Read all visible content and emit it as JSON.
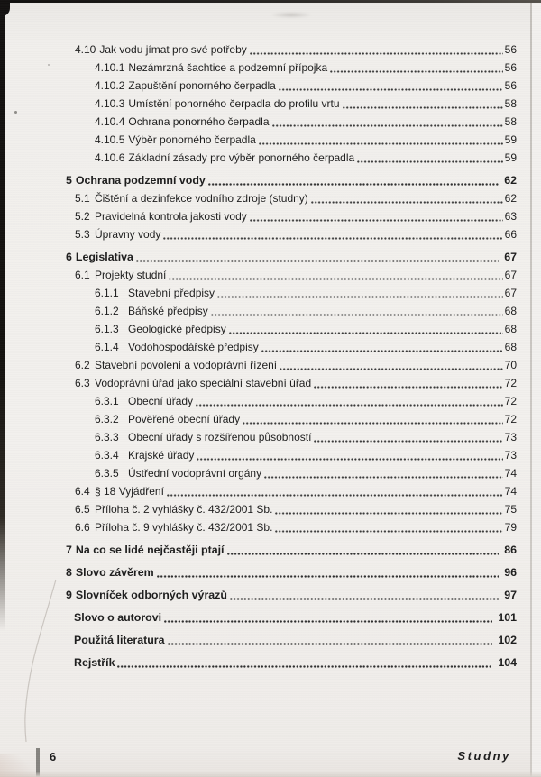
{
  "document": {
    "kind": "scanned book table of contents page",
    "language": "cs"
  },
  "colors": {
    "paper": "#f1efec",
    "ink": "#1d1d1d",
    "scan_edge_dark": "#131110",
    "footer_accent_bar": "#85837f"
  },
  "toc": {
    "entries": [
      {
        "num": "4.10",
        "title": "Jak vodu jímat pro své potřeby",
        "page": "56",
        "level": 1,
        "bold": false
      },
      {
        "num": "4.10.1",
        "title": "Nezámrzná šachtice a podzemní přípojka",
        "page": "56",
        "level": 2,
        "bold": false
      },
      {
        "num": "4.10.2",
        "title": "Zapuštění ponorného čerpadla",
        "page": "56",
        "level": 2,
        "bold": false
      },
      {
        "num": "4.10.3",
        "title": "Umístění ponorného čerpadla do profilu vrtu",
        "page": "58",
        "level": 2,
        "bold": false
      },
      {
        "num": "4.10.4",
        "title": "Ochrana ponorného čerpadla",
        "page": "58",
        "level": 2,
        "bold": false
      },
      {
        "num": "4.10.5",
        "title": "Výběr ponorného čerpadla",
        "page": "59",
        "level": 2,
        "bold": false
      },
      {
        "num": "4.10.6",
        "title": "Základní zásady pro výběr ponorného čerpadla",
        "page": "59",
        "level": 2,
        "bold": false
      },
      {
        "num": "5",
        "title": "Ochrana podzemní vody",
        "page": "62",
        "level": 0,
        "bold": true
      },
      {
        "num": "5.1",
        "title": "Čištění a dezinfekce vodního zdroje (studny)",
        "page": "62",
        "level": 1,
        "bold": false
      },
      {
        "num": "5.2",
        "title": "Pravidelná kontrola jakosti vody",
        "page": "63",
        "level": 1,
        "bold": false
      },
      {
        "num": "5.3",
        "title": "Úpravny vody",
        "page": "66",
        "level": 1,
        "bold": false
      },
      {
        "num": "6",
        "title": "Legislativa",
        "page": "67",
        "level": 0,
        "bold": true
      },
      {
        "num": "6.1",
        "title": "Projekty studní",
        "page": "67",
        "level": 1,
        "bold": false
      },
      {
        "num": "6.1.1",
        "title": "Stavební předpisy",
        "page": "67",
        "level": 2,
        "bold": false
      },
      {
        "num": "6.1.2",
        "title": "Báňské předpisy",
        "page": "68",
        "level": 2,
        "bold": false
      },
      {
        "num": "6.1.3",
        "title": "Geologické předpisy",
        "page": "68",
        "level": 2,
        "bold": false
      },
      {
        "num": "6.1.4",
        "title": "Vodohospodářské předpisy",
        "page": "68",
        "level": 2,
        "bold": false
      },
      {
        "num": "6.2",
        "title": "Stavební povolení a vodoprávní řízení",
        "page": "70",
        "level": 1,
        "bold": false
      },
      {
        "num": "6.3",
        "title": "Vodoprávní úřad jako speciální stavební úřad",
        "page": "72",
        "level": 1,
        "bold": false
      },
      {
        "num": "6.3.1",
        "title": "Obecní úřady",
        "page": "72",
        "level": 2,
        "bold": false
      },
      {
        "num": "6.3.2",
        "title": "Pověřené obecní úřady",
        "page": "72",
        "level": 2,
        "bold": false
      },
      {
        "num": "6.3.3",
        "title": "Obecní úřady s rozšířenou působností",
        "page": "73",
        "level": 2,
        "bold": false
      },
      {
        "num": "6.3.4",
        "title": "Krajské úřady",
        "page": "73",
        "level": 2,
        "bold": false
      },
      {
        "num": "6.3.5",
        "title": "Ústřední vodoprávní orgány",
        "page": "74",
        "level": 2,
        "bold": false
      },
      {
        "num": "6.4",
        "title": "§ 18 Vyjádření",
        "page": "74",
        "level": 1,
        "bold": false
      },
      {
        "num": "6.5",
        "title": "Příloha č. 2 vyhlášky č. 432/2001 Sb.",
        "page": "75",
        "level": 1,
        "bold": false
      },
      {
        "num": "6.6",
        "title": "Příloha č. 9 vyhlášky č. 432/2001 Sb.",
        "page": "79",
        "level": 1,
        "bold": false
      },
      {
        "num": "7",
        "title": "Na co se lidé nejčastěji ptají",
        "page": "86",
        "level": 0,
        "bold": true
      },
      {
        "num": "8",
        "title": "Slovo závěrem",
        "page": "96",
        "level": 0,
        "bold": true
      },
      {
        "num": "9",
        "title": "Slovníček odborných výrazů",
        "page": "97",
        "level": 0,
        "bold": true
      },
      {
        "num": "",
        "title": "Slovo o autorovi",
        "page": "101",
        "level": 0,
        "bold": true
      },
      {
        "num": "",
        "title": "Použitá literatura",
        "page": "102",
        "level": 0,
        "bold": true
      },
      {
        "num": "",
        "title": "Rejstřík",
        "page": "104",
        "level": 0,
        "bold": true
      }
    ]
  },
  "footer": {
    "page_number": "6",
    "book_title": "Studny"
  }
}
